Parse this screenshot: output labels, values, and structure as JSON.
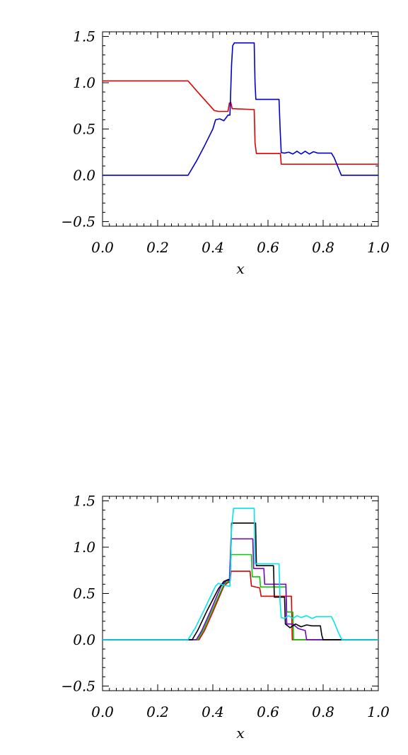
{
  "chart_data": [
    {
      "type": "line",
      "xlabel": "x",
      "ylabel": "",
      "xlim": [
        0.0,
        1.0
      ],
      "ylim": [
        -0.55,
        1.55
      ],
      "x_ticks": [
        "0.0",
        "0.2",
        "0.4",
        "0.6",
        "0.8",
        "1.0"
      ],
      "y_ticks": [
        "−0.5",
        "0.0",
        "0.5",
        "1.0",
        "1.5"
      ],
      "x_tick_values": [
        0.0,
        0.2,
        0.4,
        0.6,
        0.8,
        1.0
      ],
      "y_tick_values": [
        -0.5,
        0.0,
        0.5,
        1.0,
        1.5
      ],
      "grid": false,
      "series": [
        {
          "color": "#dd0000",
          "points": [
            [
              0.0,
              1.02
            ],
            [
              0.31,
              1.02
            ],
            [
              0.345,
              0.9
            ],
            [
              0.375,
              0.8
            ],
            [
              0.405,
              0.7
            ],
            [
              0.42,
              0.69
            ],
            [
              0.455,
              0.69
            ],
            [
              0.46,
              0.78
            ],
            [
              0.465,
              0.79
            ],
            [
              0.47,
              0.72
            ],
            [
              0.55,
              0.71
            ],
            [
              0.553,
              0.35
            ],
            [
              0.558,
              0.235
            ],
            [
              0.645,
              0.235
            ],
            [
              0.648,
              0.12
            ],
            [
              1.0,
              0.12
            ]
          ]
        },
        {
          "color": "#0000cc",
          "points": [
            [
              0.0,
              0.0
            ],
            [
              0.31,
              0.0
            ],
            [
              0.34,
              0.15
            ],
            [
              0.37,
              0.32
            ],
            [
              0.4,
              0.5
            ],
            [
              0.41,
              0.6
            ],
            [
              0.425,
              0.61
            ],
            [
              0.44,
              0.59
            ],
            [
              0.455,
              0.65
            ],
            [
              0.462,
              0.65
            ],
            [
              0.468,
              1.2
            ],
            [
              0.472,
              1.4
            ],
            [
              0.478,
              1.43
            ],
            [
              0.55,
              1.43
            ],
            [
              0.553,
              1.0
            ],
            [
              0.556,
              0.82
            ],
            [
              0.64,
              0.82
            ],
            [
              0.644,
              0.5
            ],
            [
              0.648,
              0.245
            ],
            [
              0.66,
              0.24
            ],
            [
              0.675,
              0.25
            ],
            [
              0.69,
              0.23
            ],
            [
              0.705,
              0.26
            ],
            [
              0.72,
              0.23
            ],
            [
              0.735,
              0.26
            ],
            [
              0.75,
              0.23
            ],
            [
              0.765,
              0.255
            ],
            [
              0.78,
              0.24
            ],
            [
              0.83,
              0.24
            ],
            [
              0.84,
              0.19
            ],
            [
              0.855,
              0.08
            ],
            [
              0.866,
              0.0
            ],
            [
              1.0,
              0.0
            ]
          ]
        }
      ]
    },
    {
      "type": "line",
      "xlabel": "x",
      "ylabel": "",
      "xlim": [
        0.0,
        1.0
      ],
      "ylim": [
        -0.55,
        1.55
      ],
      "x_ticks": [
        "0.0",
        "0.2",
        "0.4",
        "0.6",
        "0.8",
        "1.0"
      ],
      "y_ticks": [
        "−0.5",
        "0.0",
        "0.5",
        "1.0",
        "1.5"
      ],
      "x_tick_values": [
        0.0,
        0.2,
        0.4,
        0.6,
        0.8,
        1.0
      ],
      "y_tick_values": [
        -0.5,
        0.0,
        0.5,
        1.0,
        1.5
      ],
      "grid": false,
      "series": [
        {
          "color": "#dd0000",
          "points": [
            [
              0.0,
              0.0
            ],
            [
              0.35,
              0.0
            ],
            [
              0.37,
              0.1
            ],
            [
              0.4,
              0.3
            ],
            [
              0.44,
              0.58
            ],
            [
              0.455,
              0.62
            ],
            [
              0.462,
              0.62
            ],
            [
              0.466,
              0.74
            ],
            [
              0.535,
              0.74
            ],
            [
              0.54,
              0.58
            ],
            [
              0.57,
              0.56
            ],
            [
              0.575,
              0.47
            ],
            [
              0.685,
              0.47
            ],
            [
              0.688,
              0.0
            ],
            [
              1.0,
              0.0
            ]
          ]
        },
        {
          "color": "#00cc00",
          "points": [
            [
              0.0,
              0.0
            ],
            [
              0.345,
              0.0
            ],
            [
              0.365,
              0.1
            ],
            [
              0.395,
              0.3
            ],
            [
              0.44,
              0.6
            ],
            [
              0.455,
              0.63
            ],
            [
              0.462,
              0.63
            ],
            [
              0.466,
              0.92
            ],
            [
              0.54,
              0.92
            ],
            [
              0.543,
              0.68
            ],
            [
              0.57,
              0.68
            ],
            [
              0.573,
              0.57
            ],
            [
              0.665,
              0.57
            ],
            [
              0.668,
              0.3
            ],
            [
              0.69,
              0.3
            ],
            [
              0.693,
              0.0
            ],
            [
              1.0,
              0.0
            ]
          ]
        },
        {
          "color": "#7700cc",
          "points": [
            [
              0.0,
              0.0
            ],
            [
              0.34,
              0.0
            ],
            [
              0.36,
              0.1
            ],
            [
              0.39,
              0.3
            ],
            [
              0.43,
              0.58
            ],
            [
              0.45,
              0.64
            ],
            [
              0.46,
              0.64
            ],
            [
              0.466,
              1.09
            ],
            [
              0.545,
              1.09
            ],
            [
              0.548,
              0.77
            ],
            [
              0.585,
              0.77
            ],
            [
              0.588,
              0.6
            ],
            [
              0.665,
              0.6
            ],
            [
              0.668,
              0.17
            ],
            [
              0.69,
              0.17
            ],
            [
              0.71,
              0.12
            ],
            [
              0.735,
              0.1
            ],
            [
              0.74,
              0.0
            ],
            [
              1.0,
              0.0
            ]
          ]
        },
        {
          "color": "#000000",
          "points": [
            [
              0.0,
              0.0
            ],
            [
              0.325,
              0.0
            ],
            [
              0.345,
              0.1
            ],
            [
              0.38,
              0.32
            ],
            [
              0.42,
              0.55
            ],
            [
              0.44,
              0.63
            ],
            [
              0.455,
              0.65
            ],
            [
              0.463,
              0.65
            ],
            [
              0.468,
              1.26
            ],
            [
              0.555,
              1.26
            ],
            [
              0.558,
              0.8
            ],
            [
              0.62,
              0.8
            ],
            [
              0.623,
              0.46
            ],
            [
              0.66,
              0.46
            ],
            [
              0.663,
              0.17
            ],
            [
              0.68,
              0.13
            ],
            [
              0.7,
              0.17
            ],
            [
              0.72,
              0.14
            ],
            [
              0.74,
              0.16
            ],
            [
              0.76,
              0.15
            ],
            [
              0.79,
              0.15
            ],
            [
              0.795,
              0.05
            ],
            [
              0.8,
              0.0
            ],
            [
              1.0,
              0.0
            ]
          ]
        },
        {
          "color": "#00e5ee",
          "points": [
            [
              0.0,
              0.0
            ],
            [
              0.31,
              0.0
            ],
            [
              0.335,
              0.12
            ],
            [
              0.365,
              0.3
            ],
            [
              0.4,
              0.52
            ],
            [
              0.41,
              0.58
            ],
            [
              0.42,
              0.61
            ],
            [
              0.44,
              0.59
            ],
            [
              0.455,
              0.58
            ],
            [
              0.462,
              0.58
            ],
            [
              0.468,
              1.2
            ],
            [
              0.475,
              1.42
            ],
            [
              0.55,
              1.42
            ],
            [
              0.553,
              0.82
            ],
            [
              0.64,
              0.82
            ],
            [
              0.644,
              0.4
            ],
            [
              0.648,
              0.24
            ],
            [
              0.66,
              0.23
            ],
            [
              0.675,
              0.26
            ],
            [
              0.69,
              0.23
            ],
            [
              0.705,
              0.26
            ],
            [
              0.72,
              0.24
            ],
            [
              0.74,
              0.26
            ],
            [
              0.76,
              0.23
            ],
            [
              0.775,
              0.25
            ],
            [
              0.83,
              0.25
            ],
            [
              0.84,
              0.19
            ],
            [
              0.855,
              0.08
            ],
            [
              0.868,
              0.0
            ],
            [
              1.0,
              0.0
            ]
          ]
        }
      ]
    }
  ]
}
